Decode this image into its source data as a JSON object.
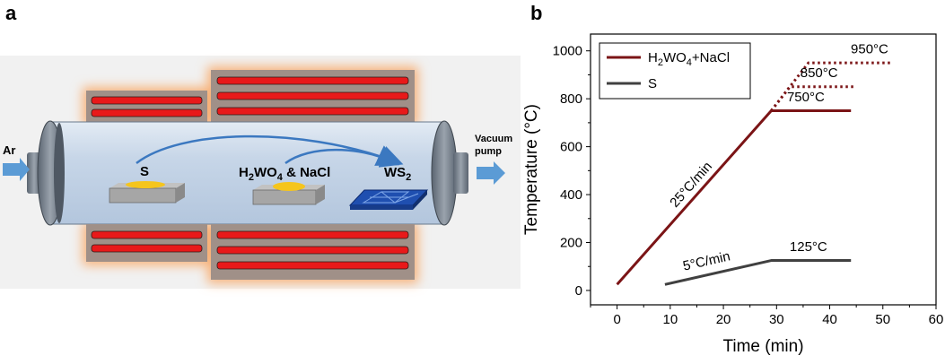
{
  "panel_a": {
    "letter": "a",
    "labels": {
      "ar": "Ar",
      "vacuum_line1": "Vacuum",
      "vacuum_line2": "pump",
      "s": "S",
      "precursor_main": "H",
      "precursor_sub1": "2",
      "precursor_mid": "WO",
      "precursor_sub2": "4",
      "precursor_end": " & NaCl",
      "product_main": "WS",
      "product_sub": "2"
    },
    "colors": {
      "heater_coil": "#e8191a",
      "heater_block": "#a09088",
      "heater_glow": "#f7b27a",
      "tube": "#c4d4e6",
      "substrate": "#a6a6a6",
      "powder": "#f5c51c",
      "crystal": "#1f4fb0",
      "arrow": "#3b78c0"
    }
  },
  "panel_b": {
    "letter": "b",
    "chart_data": {
      "type": "line",
      "xlabel": "Time (min)",
      "ylabel": "Temperature (°C)",
      "xlim": [
        -5,
        60
      ],
      "ylim": [
        -60,
        1070
      ],
      "xticks": [
        0,
        10,
        20,
        30,
        40,
        50,
        60
      ],
      "yticks": [
        0,
        200,
        400,
        600,
        800,
        1000
      ],
      "legend_position": "top-left",
      "series": [
        {
          "name_main": "H",
          "name_sub1": "2",
          "name_mid": "WO",
          "name_sub2": "4",
          "name_end": "+NaCl",
          "color": "#7b1416",
          "style": "solid",
          "x": [
            0,
            29,
            44
          ],
          "y": [
            25,
            750,
            750
          ]
        },
        {
          "name": "S",
          "color": "#404040",
          "style": "solid",
          "x": [
            9,
            29,
            44
          ],
          "y": [
            25,
            125,
            125
          ]
        }
      ],
      "dotted_branches": [
        {
          "color": "#7b1416",
          "x": [
            29,
            36,
            51.5
          ],
          "y": [
            750,
            950,
            950
          ]
        },
        {
          "color": "#7b1416",
          "x": [
            29,
            32.5,
            44.5
          ],
          "y": [
            750,
            850,
            850
          ]
        }
      ],
      "annotations": [
        {
          "text": "950°C",
          "x": 47.5,
          "y": 990
        },
        {
          "text": "850°C",
          "x": 38,
          "y": 890
        },
        {
          "text": "750°C",
          "x": 35.5,
          "y": 790
        },
        {
          "text": "125°C",
          "x": 36,
          "y": 165
        },
        {
          "text": "25°C/min",
          "x": 14.5,
          "y": 430,
          "rotated": true
        },
        {
          "text": "5°C/min",
          "x": 17,
          "y": 105,
          "rotated": true
        }
      ]
    }
  }
}
